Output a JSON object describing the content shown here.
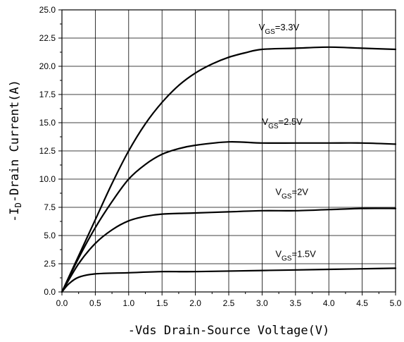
{
  "chart_data": {
    "type": "line",
    "xlabel": "-Vds Drain-Source Voltage(V)",
    "ylabel": {
      "prefix": "-I",
      "sub": "D",
      "suffix": "-Drain Current(A)"
    },
    "xlim": [
      0.0,
      5.0
    ],
    "ylim": [
      0.0,
      25.0
    ],
    "x_ticks": [
      "0.0",
      "0.5",
      "1.0",
      "1.5",
      "2.0",
      "2.5",
      "3.0",
      "3.5",
      "4.0",
      "4.5",
      "5.0"
    ],
    "y_ticks": [
      "0.0",
      "2.5",
      "5.0",
      "7.5",
      "10.0",
      "12.5",
      "15.0",
      "17.5",
      "20.0",
      "22.5",
      "25.0"
    ],
    "grid": true,
    "series": [
      {
        "name": "VGS=3.3V",
        "label": {
          "v": "V",
          "sub": "GS",
          "rest": "=3.3V"
        },
        "label_at": [
          2.95,
          23.2
        ],
        "points": [
          [
            0.0,
            0.0
          ],
          [
            0.25,
            3.2
          ],
          [
            0.5,
            6.4
          ],
          [
            0.75,
            9.6
          ],
          [
            1.0,
            12.5
          ],
          [
            1.25,
            14.9
          ],
          [
            1.5,
            16.8
          ],
          [
            1.75,
            18.3
          ],
          [
            2.0,
            19.4
          ],
          [
            2.25,
            20.2
          ],
          [
            2.5,
            20.8
          ],
          [
            2.75,
            21.2
          ],
          [
            3.0,
            21.5
          ],
          [
            3.5,
            21.6
          ],
          [
            4.0,
            21.7
          ],
          [
            4.5,
            21.6
          ],
          [
            5.0,
            21.5
          ]
        ]
      },
      {
        "name": "VGS=2.5V",
        "label": {
          "v": "V",
          "sub": "GS",
          "rest": "=2.5V"
        },
        "label_at": [
          3.0,
          14.8
        ],
        "points": [
          [
            0.0,
            0.0
          ],
          [
            0.25,
            3.0
          ],
          [
            0.5,
            5.7
          ],
          [
            0.75,
            8.0
          ],
          [
            1.0,
            10.0
          ],
          [
            1.25,
            11.3
          ],
          [
            1.5,
            12.2
          ],
          [
            1.75,
            12.7
          ],
          [
            2.0,
            13.0
          ],
          [
            2.5,
            13.3
          ],
          [
            3.0,
            13.2
          ],
          [
            3.5,
            13.2
          ],
          [
            4.0,
            13.2
          ],
          [
            4.5,
            13.2
          ],
          [
            5.0,
            13.1
          ]
        ]
      },
      {
        "name": "VGS=2V",
        "label": {
          "v": "V",
          "sub": "GS",
          "rest": "=2V"
        },
        "label_at": [
          3.2,
          8.6
        ],
        "points": [
          [
            0.0,
            0.0
          ],
          [
            0.25,
            2.5
          ],
          [
            0.5,
            4.3
          ],
          [
            0.75,
            5.5
          ],
          [
            1.0,
            6.3
          ],
          [
            1.25,
            6.7
          ],
          [
            1.5,
            6.9
          ],
          [
            2.0,
            7.0
          ],
          [
            2.5,
            7.1
          ],
          [
            3.0,
            7.2
          ],
          [
            3.5,
            7.2
          ],
          [
            4.0,
            7.3
          ],
          [
            4.5,
            7.4
          ],
          [
            5.0,
            7.4
          ]
        ]
      },
      {
        "name": "VGS=1.5V",
        "label": {
          "v": "V",
          "sub": "GS",
          "rest": "=1.5V"
        },
        "label_at": [
          3.2,
          3.1
        ],
        "points": [
          [
            0.0,
            0.0
          ],
          [
            0.1,
            0.7
          ],
          [
            0.25,
            1.3
          ],
          [
            0.5,
            1.6
          ],
          [
            1.0,
            1.7
          ],
          [
            1.5,
            1.8
          ],
          [
            2.0,
            1.8
          ],
          [
            3.0,
            1.9
          ],
          [
            4.0,
            2.0
          ],
          [
            4.5,
            2.05
          ],
          [
            5.0,
            2.1
          ]
        ]
      }
    ]
  }
}
